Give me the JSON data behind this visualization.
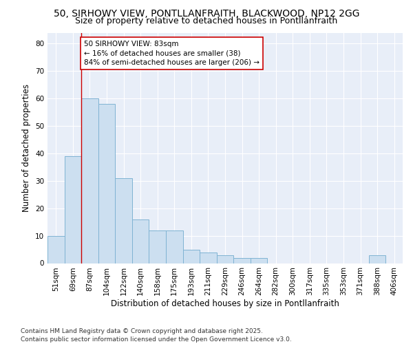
{
  "title": "50, SIRHOWY VIEW, PONTLLANFRAITH, BLACKWOOD, NP12 2GG",
  "subtitle": "Size of property relative to detached houses in Pontllanfraith",
  "xlabel": "Distribution of detached houses by size in Pontllanfraith",
  "ylabel": "Number of detached properties",
  "categories": [
    "51sqm",
    "69sqm",
    "87sqm",
    "104sqm",
    "122sqm",
    "140sqm",
    "158sqm",
    "175sqm",
    "193sqm",
    "211sqm",
    "229sqm",
    "246sqm",
    "264sqm",
    "282sqm",
    "300sqm",
    "317sqm",
    "335sqm",
    "353sqm",
    "371sqm",
    "388sqm",
    "406sqm"
  ],
  "values": [
    10,
    39,
    60,
    58,
    31,
    16,
    12,
    12,
    5,
    4,
    3,
    2,
    2,
    0,
    0,
    0,
    0,
    0,
    0,
    3,
    0
  ],
  "bar_color": "#ccdff0",
  "bar_edge_color": "#7fb3d3",
  "vline_x_index": 2,
  "vline_color": "#cc0000",
  "annotation_text": "50 SIRHOWY VIEW: 83sqm\n← 16% of detached houses are smaller (38)\n84% of semi-detached houses are larger (206) →",
  "annotation_box_color": "#ffffff",
  "annotation_box_edge": "#cc0000",
  "ylim": [
    0,
    84
  ],
  "yticks": [
    0,
    10,
    20,
    30,
    40,
    50,
    60,
    70,
    80
  ],
  "bg_color": "#e8eef8",
  "grid_color": "#ffffff",
  "footer": "Contains HM Land Registry data © Crown copyright and database right 2025.\nContains public sector information licensed under the Open Government Licence v3.0.",
  "title_fontsize": 10,
  "subtitle_fontsize": 9,
  "axis_label_fontsize": 8.5,
  "tick_fontsize": 7.5,
  "annotation_fontsize": 7.5,
  "footer_fontsize": 6.5
}
